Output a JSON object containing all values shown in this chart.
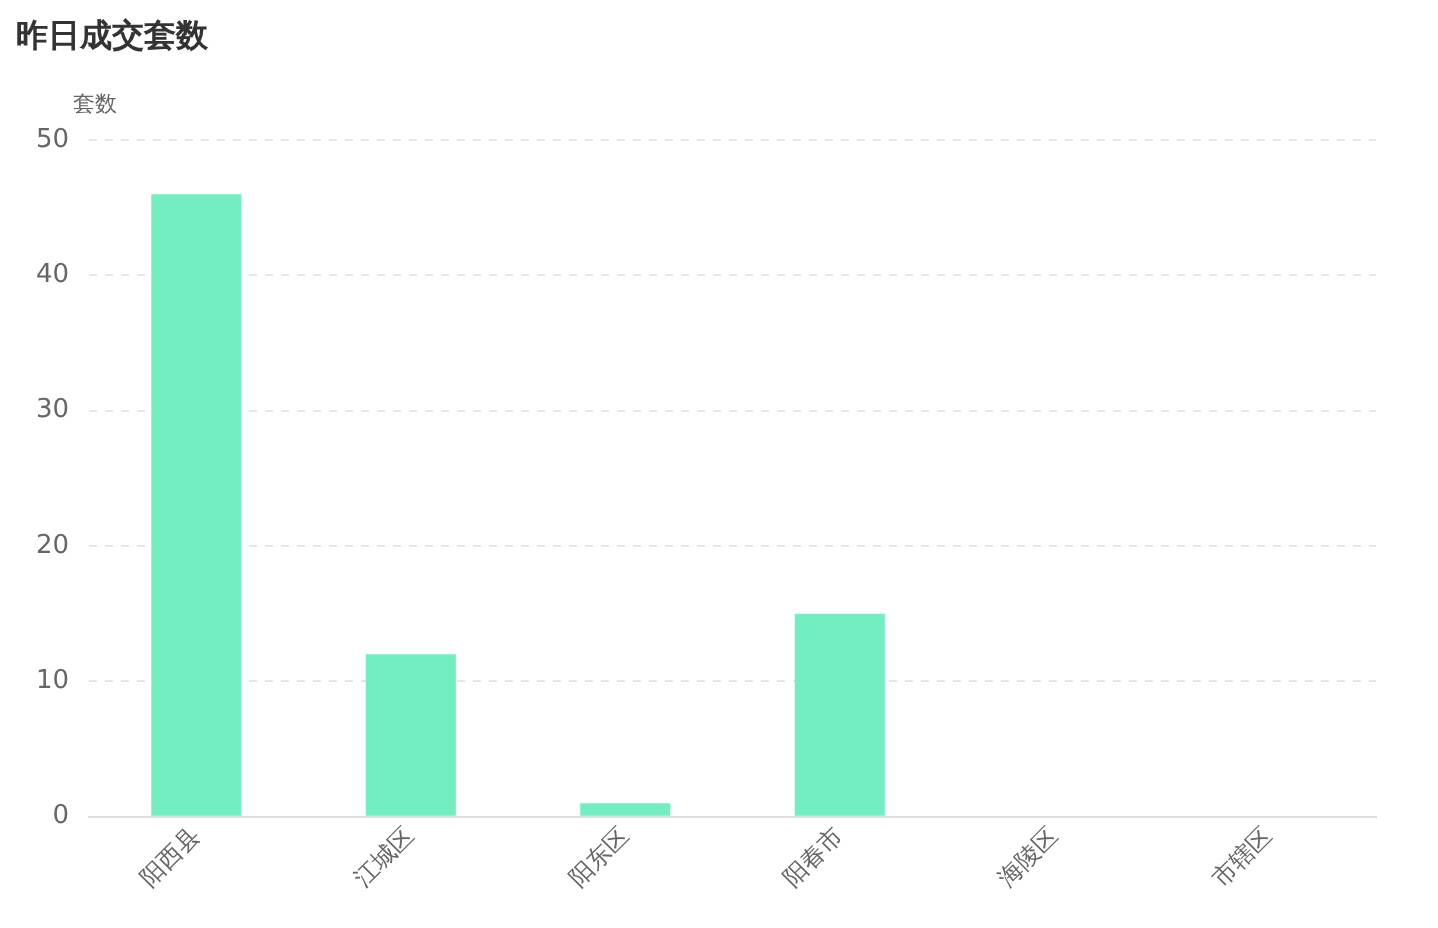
{
  "chart_data": {
    "type": "bar",
    "title": "昨日成交套数",
    "ylabel": "套数",
    "categories": [
      "阳西县",
      "江城区",
      "阳东区",
      "阳春市",
      "海陵区",
      "市辖区"
    ],
    "values": [
      46,
      12,
      1,
      15,
      0,
      0
    ],
    "color": "#72eec0",
    "ylim": [
      0,
      50
    ],
    "yticks": [
      0,
      10,
      20,
      30,
      40,
      50
    ],
    "grid": "y"
  }
}
